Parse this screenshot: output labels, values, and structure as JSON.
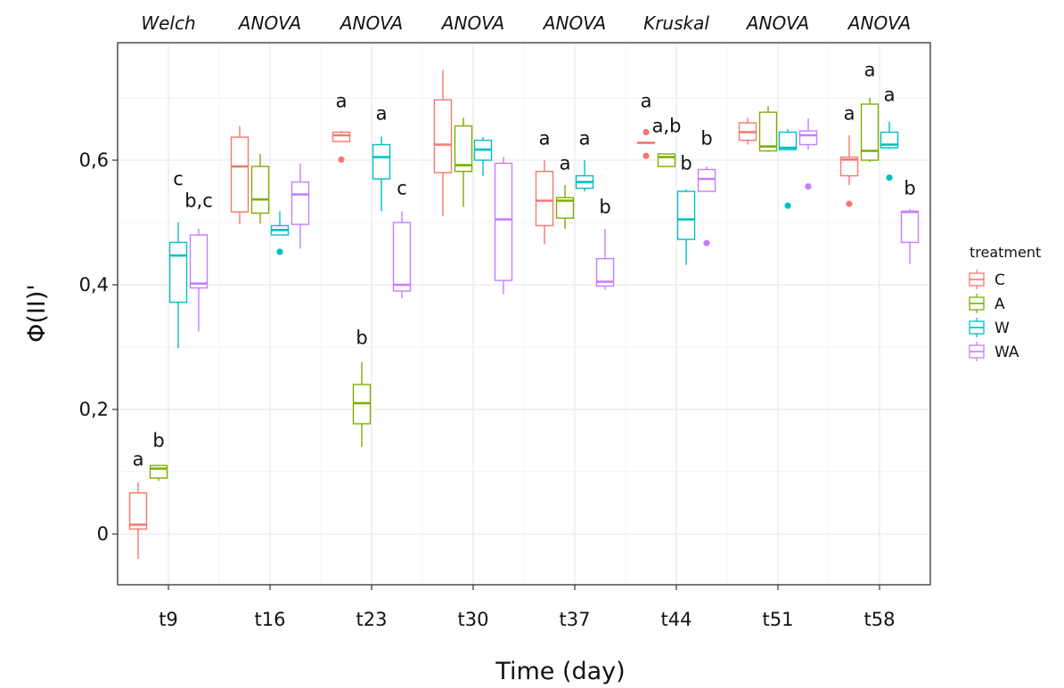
{
  "chart_data": {
    "type": "box",
    "xlabel": "Time (day)",
    "ylabel": "Φ(II)'",
    "ylim": [
      -0.08,
      0.78
    ],
    "yticks": [
      "0",
      "0,2",
      "0,4",
      "0,6"
    ],
    "ytick_values": [
      0,
      0.2,
      0.4,
      0.6
    ],
    "categories": [
      "t9",
      "t16",
      "t23",
      "t30",
      "t37",
      "t44",
      "t51",
      "t58"
    ],
    "tests": [
      "Welch",
      "ANOVA",
      "ANOVA",
      "ANOVA",
      "ANOVA",
      "Kruskal",
      "ANOVA",
      "ANOVA"
    ],
    "grid": true,
    "legend": {
      "title": "treatment",
      "position": "right"
    },
    "colors": {
      "C": "#F8766D",
      "A": "#7CAE00",
      "W": "#00BFC4",
      "WA": "#C77CFF"
    },
    "series": [
      {
        "name": "C",
        "boxes": [
          {
            "min": -0.04,
            "q1": 0.008,
            "median": 0.015,
            "q3": 0.066,
            "max": 0.083,
            "outliers": []
          },
          {
            "min": 0.497,
            "q1": 0.517,
            "median": 0.59,
            "q3": 0.637,
            "max": 0.655,
            "outliers": []
          },
          {
            "min": 0.63,
            "q1": 0.63,
            "median": 0.64,
            "q3": 0.645,
            "max": 0.647,
            "outliers": [
              0.601
            ]
          },
          {
            "min": 0.51,
            "q1": 0.58,
            "median": 0.625,
            "q3": 0.697,
            "max": 0.745,
            "outliers": []
          },
          {
            "min": 0.465,
            "q1": 0.495,
            "median": 0.535,
            "q3": 0.582,
            "max": 0.6,
            "outliers": []
          },
          {
            "min": 0.628,
            "q1": 0.628,
            "median": 0.628,
            "q3": 0.628,
            "max": 0.628,
            "outliers": [
              0.645,
              0.607
            ]
          },
          {
            "min": 0.625,
            "q1": 0.632,
            "median": 0.645,
            "q3": 0.66,
            "max": 0.668,
            "outliers": []
          },
          {
            "min": 0.56,
            "q1": 0.575,
            "median": 0.601,
            "q3": 0.605,
            "max": 0.64,
            "outliers": [
              0.53
            ]
          }
        ]
      },
      {
        "name": "A",
        "boxes": [
          {
            "min": 0.085,
            "q1": 0.09,
            "median": 0.105,
            "q3": 0.11,
            "max": 0.11,
            "outliers": []
          },
          {
            "min": 0.498,
            "q1": 0.515,
            "median": 0.537,
            "q3": 0.59,
            "max": 0.61,
            "outliers": []
          },
          {
            "min": 0.14,
            "q1": 0.177,
            "median": 0.21,
            "q3": 0.24,
            "max": 0.276,
            "outliers": []
          },
          {
            "min": 0.525,
            "q1": 0.582,
            "median": 0.592,
            "q3": 0.655,
            "max": 0.668,
            "outliers": []
          },
          {
            "min": 0.49,
            "q1": 0.507,
            "median": 0.535,
            "q3": 0.54,
            "max": 0.56,
            "outliers": []
          },
          {
            "min": 0.59,
            "q1": 0.59,
            "median": 0.605,
            "q3": 0.61,
            "max": 0.61,
            "outliers": []
          },
          {
            "min": 0.613,
            "q1": 0.615,
            "median": 0.622,
            "q3": 0.677,
            "max": 0.687,
            "outliers": []
          },
          {
            "min": 0.597,
            "q1": 0.6,
            "median": 0.615,
            "q3": 0.69,
            "max": 0.7,
            "outliers": []
          }
        ]
      },
      {
        "name": "W",
        "boxes": [
          {
            "min": 0.298,
            "q1": 0.372,
            "median": 0.447,
            "q3": 0.468,
            "max": 0.5,
            "outliers": []
          },
          {
            "min": 0.48,
            "q1": 0.48,
            "median": 0.488,
            "q3": 0.495,
            "max": 0.518,
            "outliers": [
              0.453
            ]
          },
          {
            "min": 0.518,
            "q1": 0.57,
            "median": 0.605,
            "q3": 0.625,
            "max": 0.638,
            "outliers": []
          },
          {
            "min": 0.575,
            "q1": 0.6,
            "median": 0.617,
            "q3": 0.632,
            "max": 0.637,
            "outliers": []
          },
          {
            "min": 0.55,
            "q1": 0.555,
            "median": 0.565,
            "q3": 0.575,
            "max": 0.6,
            "outliers": []
          },
          {
            "min": 0.432,
            "q1": 0.473,
            "median": 0.505,
            "q3": 0.55,
            "max": 0.553,
            "outliers": []
          },
          {
            "min": 0.617,
            "q1": 0.617,
            "median": 0.62,
            "q3": 0.645,
            "max": 0.65,
            "outliers": [
              0.527
            ]
          },
          {
            "min": 0.618,
            "q1": 0.62,
            "median": 0.625,
            "q3": 0.645,
            "max": 0.662,
            "outliers": [
              0.572
            ]
          }
        ]
      },
      {
        "name": "WA",
        "boxes": [
          {
            "min": 0.325,
            "q1": 0.395,
            "median": 0.402,
            "q3": 0.48,
            "max": 0.49,
            "outliers": []
          },
          {
            "min": 0.458,
            "q1": 0.497,
            "median": 0.545,
            "q3": 0.565,
            "max": 0.595,
            "outliers": []
          },
          {
            "min": 0.378,
            "q1": 0.39,
            "median": 0.4,
            "q3": 0.5,
            "max": 0.518,
            "outliers": []
          },
          {
            "min": 0.385,
            "q1": 0.407,
            "median": 0.505,
            "q3": 0.595,
            "max": 0.605,
            "outliers": []
          },
          {
            "min": 0.392,
            "q1": 0.398,
            "median": 0.405,
            "q3": 0.442,
            "max": 0.49,
            "outliers": []
          },
          {
            "min": 0.55,
            "q1": 0.55,
            "median": 0.57,
            "q3": 0.585,
            "max": 0.59,
            "outliers": [
              0.467
            ]
          },
          {
            "min": 0.617,
            "q1": 0.625,
            "median": 0.64,
            "q3": 0.647,
            "max": 0.667,
            "outliers": [
              0.558
            ]
          },
          {
            "min": 0.433,
            "q1": 0.468,
            "median": 0.517,
            "q3": 0.518,
            "max": 0.522,
            "outliers": []
          }
        ]
      }
    ],
    "letters": [
      {
        "group": 0,
        "series": "C",
        "text": "a",
        "y": 0.11
      },
      {
        "group": 0,
        "series": "A",
        "text": "b",
        "y": 0.14
      },
      {
        "group": 0,
        "series": "W",
        "text": "c",
        "y": 0.56
      },
      {
        "group": 0,
        "series": "WA",
        "text": "b,c",
        "y": 0.525
      },
      {
        "group": 2,
        "series": "C",
        "text": "a",
        "y": 0.685
      },
      {
        "group": 2,
        "series": "A",
        "text": "b",
        "y": 0.305
      },
      {
        "group": 2,
        "series": "W",
        "text": "a",
        "y": 0.665
      },
      {
        "group": 2,
        "series": "WA",
        "text": "c",
        "y": 0.545
      },
      {
        "group": 4,
        "series": "C",
        "text": "a",
        "y": 0.625
      },
      {
        "group": 4,
        "series": "A",
        "text": "a",
        "y": 0.585
      },
      {
        "group": 4,
        "series": "W",
        "text": "a",
        "y": 0.625
      },
      {
        "group": 4,
        "series": "WA",
        "text": "b",
        "y": 0.515
      },
      {
        "group": 5,
        "series": "C",
        "text": "a",
        "y": 0.685
      },
      {
        "group": 5,
        "series": "A",
        "text": "a,b",
        "y": 0.645
      },
      {
        "group": 5,
        "series": "W",
        "text": "b",
        "y": 0.585
      },
      {
        "group": 5,
        "series": "WA",
        "text": "b",
        "y": 0.625
      },
      {
        "group": 7,
        "series": "C",
        "text": "a",
        "y": 0.665
      },
      {
        "group": 7,
        "series": "A",
        "text": "a",
        "y": 0.735
      },
      {
        "group": 7,
        "series": "W",
        "text": "a",
        "y": 0.695
      },
      {
        "group": 7,
        "series": "WA",
        "text": "b",
        "y": 0.545
      }
    ]
  }
}
